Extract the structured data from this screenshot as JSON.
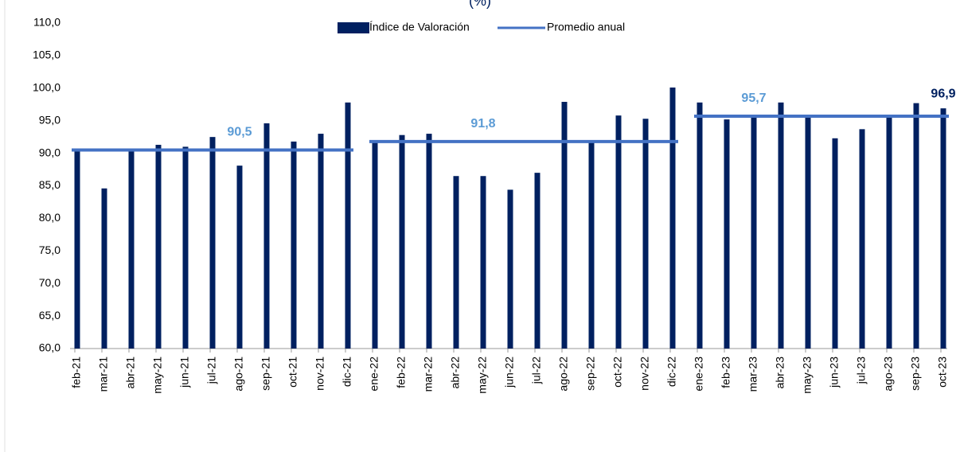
{
  "chart_data": {
    "type": "bar",
    "title": "(%)",
    "categories": [
      "feb-21",
      "mar-21",
      "abr-21",
      "may-21",
      "jun-21",
      "jul-21",
      "ago-21",
      "sep-21",
      "oct-21",
      "nov-21",
      "dic-21",
      "ene-22",
      "feb-22",
      "mar-22",
      "abr-22",
      "may-22",
      "jun-22",
      "jul-22",
      "ago-22",
      "sep-22",
      "oct-22",
      "nov-22",
      "dic-22",
      "ene-23",
      "feb-23",
      "mar-23",
      "abr-23",
      "may-23",
      "jun-23",
      "jul-23",
      "ago-23",
      "sep-23",
      "oct-23"
    ],
    "series": [
      {
        "name": "Índice de Valoración",
        "type": "bar",
        "color": "#002060",
        "values": [
          90.3,
          84.6,
          90.3,
          91.3,
          91.0,
          92.5,
          88.1,
          94.6,
          91.8,
          93.0,
          97.8,
          92.0,
          92.8,
          93.0,
          86.5,
          86.5,
          84.4,
          87.0,
          97.9,
          91.8,
          95.8,
          95.3,
          100.1,
          97.8,
          95.2,
          95.9,
          97.8,
          95.6,
          92.3,
          93.7,
          95.6,
          97.7,
          96.9
        ],
        "value_labels": [
          null,
          null,
          null,
          null,
          null,
          null,
          null,
          null,
          null,
          null,
          null,
          null,
          null,
          null,
          null,
          null,
          null,
          null,
          null,
          null,
          null,
          null,
          null,
          null,
          null,
          null,
          null,
          null,
          null,
          null,
          null,
          null,
          "96,9"
        ]
      },
      {
        "name": "Promedio anual",
        "type": "line",
        "color": "#4472c4",
        "values": [
          90.5,
          90.5,
          90.5,
          90.5,
          90.5,
          90.5,
          90.5,
          90.5,
          90.5,
          90.5,
          90.5,
          91.8,
          91.8,
          91.8,
          91.8,
          91.8,
          91.8,
          91.8,
          91.8,
          91.8,
          91.8,
          91.8,
          91.8,
          95.7,
          95.7,
          95.7,
          95.7,
          95.7,
          95.7,
          95.7,
          95.7,
          95.7,
          95.7
        ],
        "value_labels": [
          null,
          null,
          null,
          null,
          null,
          null,
          "90,5",
          null,
          null,
          null,
          null,
          null,
          null,
          null,
          null,
          "91,8",
          null,
          null,
          null,
          null,
          null,
          null,
          null,
          null,
          null,
          "95,7",
          null,
          null,
          null,
          null,
          null,
          null,
          null
        ]
      }
    ],
    "ylim": [
      60,
      110
    ],
    "yticks": [
      {
        "value": 60,
        "label": "60,0"
      },
      {
        "value": 65,
        "label": "65,0"
      },
      {
        "value": 70,
        "label": "70,0"
      },
      {
        "value": 75,
        "label": "75,0"
      },
      {
        "value": 80,
        "label": "80,0"
      },
      {
        "value": 85,
        "label": "85,0"
      },
      {
        "value": 90,
        "label": "90,0"
      },
      {
        "value": 95,
        "label": "95,0"
      },
      {
        "value": 100,
        "label": "100,0"
      },
      {
        "value": 105,
        "label": "105,0"
      },
      {
        "value": 110,
        "label": "110,0"
      }
    ],
    "legend": "top",
    "grid": false
  }
}
